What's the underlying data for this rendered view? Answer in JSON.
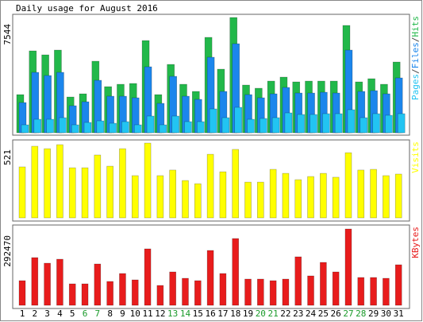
{
  "chart_data": [
    {
      "type": "overlap_bar",
      "title": "Daily usage for August 2016",
      "legend_separator": "/",
      "ylim": [
        0,
        7544
      ],
      "yticks": [
        7544
      ],
      "series": [
        {
          "name": "Hits",
          "color": "#22b84a",
          "values": [
            2497,
            5359,
            5099,
            5411,
            2341,
            2549,
            4683,
            3018,
            3174,
            3226,
            6035,
            2497,
            4474,
            3174,
            2706,
            6244,
            4162,
            7544,
            3122,
            2914,
            3382,
            3642,
            3330,
            3382,
            3382,
            3382,
            7024,
            3330,
            3538,
            3174,
            4630
          ]
        },
        {
          "name": "Files",
          "color": "#1b86ec",
          "values": [
            1977,
            3954,
            3746,
            3954,
            1769,
            2029,
            3434,
            2393,
            2393,
            2289,
            4318,
            1925,
            3694,
            2393,
            2185,
            4943,
            2706,
            5827,
            2497,
            2289,
            2549,
            2966,
            2601,
            2601,
            2653,
            2601,
            5411,
            2706,
            2757,
            2549,
            3590
          ]
        },
        {
          "name": "Pages",
          "color": "#22c4f2",
          "values": [
            520,
            884,
            884,
            988,
            520,
            676,
            780,
            624,
            728,
            520,
            1093,
            520,
            1093,
            728,
            728,
            1561,
            988,
            1665,
            884,
            937,
            988,
            1301,
            1197,
            1197,
            1249,
            1249,
            1509,
            988,
            1249,
            1145,
            1249
          ]
        }
      ]
    },
    {
      "type": "bar",
      "ylim": [
        0,
        521
      ],
      "yticks": [
        521
      ],
      "series": [
        {
          "name": "Visits",
          "color": "#ffff00",
          "values": [
            355,
            499,
            482,
            510,
            349,
            349,
            438,
            360,
            482,
            294,
            521,
            294,
            333,
            260,
            238,
            443,
            321,
            477,
            249,
            249,
            338,
            310,
            266,
            288,
            310,
            283,
            454,
            333,
            338,
            294,
            305
          ]
        }
      ]
    },
    {
      "type": "bar",
      "ylim": [
        0,
        292470
      ],
      "yticks": [
        292470
      ],
      "series": [
        {
          "name": "KBytes",
          "color": "#e81c1c",
          "values": [
            94445,
            182796,
            161470,
            176703,
            82258,
            82258,
            158423,
            91398,
            121864,
            97491,
            216309,
            76165,
            127957,
            103584,
            94445,
            210215,
            121864,
            255914,
            100538,
            100538,
            94445,
            100538,
            185843,
            112724,
            164516,
            127957,
            292470,
            106631,
            106631,
            103584,
            155377
          ]
        }
      ],
      "categories": [
        "1",
        "2",
        "3",
        "4",
        "5",
        "6",
        "7",
        "8",
        "9",
        "10",
        "11",
        "12",
        "13",
        "14",
        "15",
        "16",
        "17",
        "18",
        "19",
        "20",
        "21",
        "22",
        "23",
        "24",
        "25",
        "26",
        "27",
        "28",
        "29",
        "30",
        "31"
      ],
      "weekend_indices": [
        5,
        6,
        12,
        13,
        19,
        20,
        26,
        27
      ],
      "weekend_color": "#1a9a2a"
    }
  ]
}
